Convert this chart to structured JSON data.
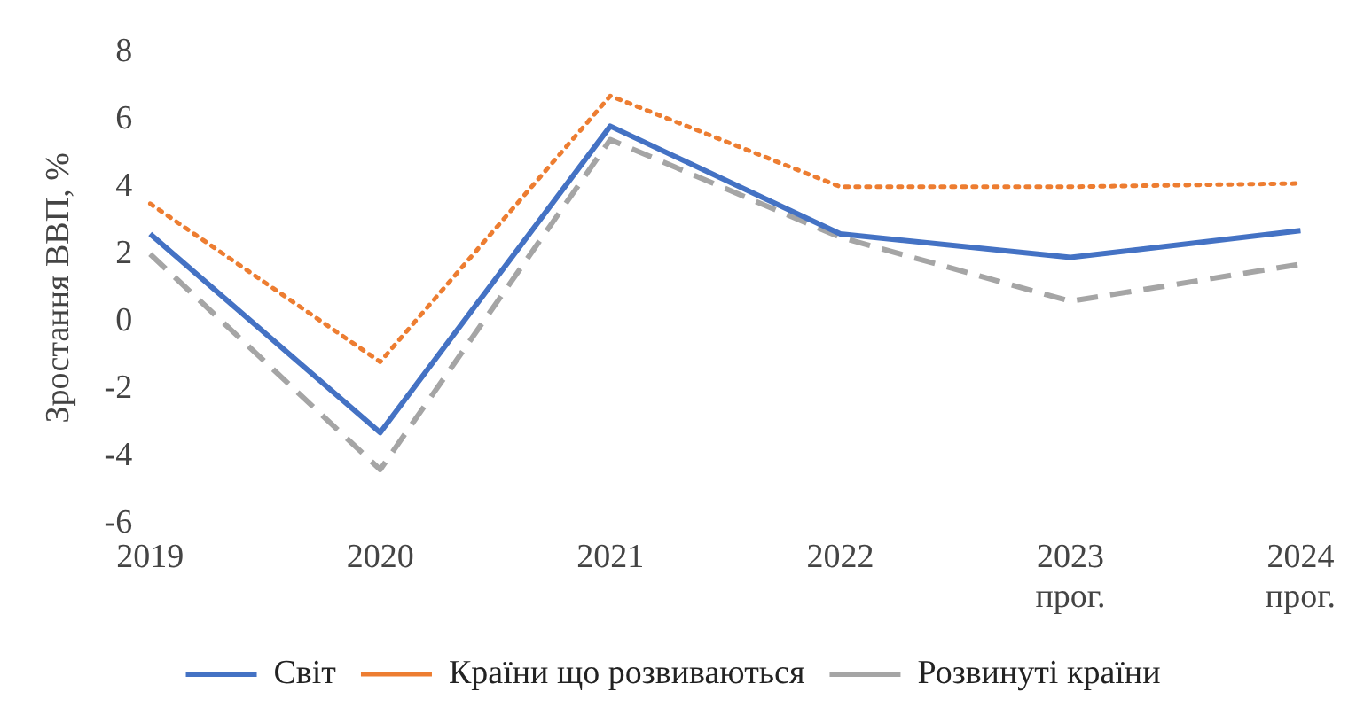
{
  "chart_data": {
    "type": "line",
    "ylabel": "Зростання ВВП, %",
    "categories": [
      "2019",
      "2020",
      "2021",
      "2022",
      "2023 прог.",
      "2024 прог."
    ],
    "series": [
      {
        "name": "Світ",
        "color": "#4472c4",
        "line_style": "solid",
        "values": [
          2.6,
          -3.3,
          5.8,
          2.6,
          1.9,
          2.7
        ]
      },
      {
        "name": "Країни що розвиваються",
        "color": "#ed7d31",
        "line_style": "dotted",
        "values": [
          3.5,
          -1.2,
          6.7,
          4.0,
          4.0,
          4.1
        ]
      },
      {
        "name": "Розвинуті країни",
        "color": "#a5a5a5",
        "line_style": "dashed",
        "values": [
          2.0,
          -4.4,
          5.4,
          2.5,
          0.6,
          1.7
        ]
      }
    ],
    "ylim": [
      -6,
      8
    ],
    "yticks": [
      -6,
      -4,
      -2,
      0,
      2,
      4,
      6,
      8
    ],
    "grid": false,
    "legend": "bottom",
    "marker": "none"
  }
}
